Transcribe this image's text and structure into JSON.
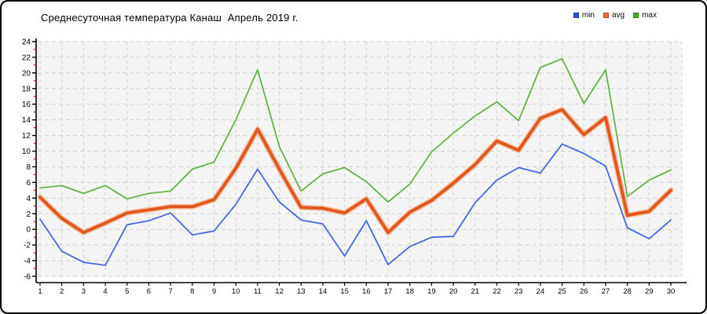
{
  "window_title": "temperature-chart",
  "title": "Среднесуточная температура Канаш  Апрель 2019 г.",
  "legend": [
    {
      "label": "min",
      "color": "#2b4fe0"
    },
    {
      "label": "avg",
      "color": "#f06d2f"
    },
    {
      "label": "max",
      "color": "#45b226"
    }
  ],
  "chart_data": {
    "type": "line",
    "title": "Среднесуточная температура Канаш  Апрель 2019 г.",
    "xlabel": "",
    "ylabel": "",
    "x": [
      1,
      2,
      3,
      4,
      5,
      6,
      7,
      8,
      9,
      10,
      11,
      12,
      13,
      14,
      15,
      16,
      17,
      18,
      19,
      20,
      21,
      22,
      23,
      24,
      25,
      26,
      27,
      28,
      29,
      30
    ],
    "series": [
      {
        "name": "min",
        "color": "#4668df",
        "width": 1.8,
        "values": [
          1.3,
          -2.8,
          -4.2,
          -4.6,
          0.6,
          1.1,
          2.1,
          -0.7,
          -0.2,
          3.2,
          7.7,
          3.5,
          1.2,
          0.7,
          -3.4,
          1.1,
          -4.5,
          -2.2,
          -1.0,
          -0.9,
          3.4,
          6.3,
          7.9,
          7.2,
          10.9,
          9.7,
          8.1,
          0.2,
          -1.2,
          1.2
        ]
      },
      {
        "name": "avg",
        "color": "#e2571e",
        "halo": "#f5bd9a",
        "width": 4,
        "values": [
          4.1,
          1.4,
          -0.4,
          0.8,
          2.1,
          2.5,
          2.9,
          2.9,
          3.8,
          7.8,
          12.8,
          7.7,
          2.8,
          2.7,
          2.1,
          3.9,
          -0.4,
          2.2,
          3.7,
          5.9,
          8.3,
          11.3,
          10.1,
          14.2,
          15.3,
          12.1,
          14.3,
          1.8,
          2.3,
          5.0
        ]
      },
      {
        "name": "max",
        "color": "#64b34b",
        "width": 1.8,
        "values": [
          5.3,
          5.6,
          4.6,
          5.6,
          3.9,
          4.6,
          4.9,
          7.7,
          8.6,
          14.0,
          20.4,
          10.6,
          4.9,
          7.1,
          7.9,
          6.1,
          3.5,
          5.8,
          9.9,
          12.3,
          14.5,
          16.3,
          13.9,
          20.7,
          21.8,
          16.1,
          20.4,
          4.2,
          6.3,
          7.6
        ]
      }
    ],
    "ylim": [
      -6,
      24
    ],
    "ytick_step": 2,
    "grid": true,
    "grid_color": "#cfcfcf",
    "plot_bg": "#f5f5f5",
    "axis_color": "#000000",
    "minor_tick_color": "#d40000",
    "legend_position": "top-right"
  }
}
